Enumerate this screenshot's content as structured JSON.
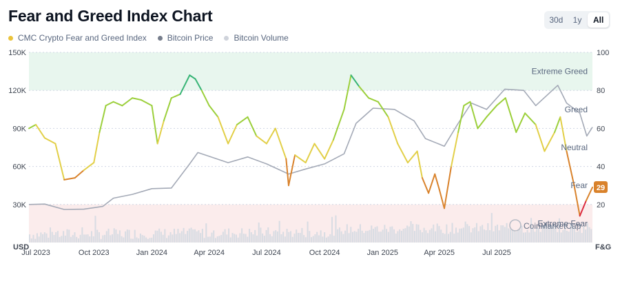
{
  "page": {
    "title": "Fear and Greed Index Chart",
    "range_buttons": [
      {
        "label": "30d",
        "active": false
      },
      {
        "label": "1y",
        "active": false
      },
      {
        "label": "All",
        "active": true
      }
    ]
  },
  "legend": [
    {
      "label": "CMC Crypto Fear and Greed Index",
      "color": "#eac33b"
    },
    {
      "label": "Bitcoin Price",
      "color": "#777e8c"
    },
    {
      "label": "Bitcoin Volume",
      "color": "#cfd3db"
    }
  ],
  "watermark": "CoinMarketCap",
  "badge": "29",
  "chart_data": {
    "type": "line",
    "left_axis": {
      "unit": "USD",
      "ticks": [
        "30K",
        "60K",
        "90K",
        "120K",
        "150K"
      ],
      "values": [
        30000,
        60000,
        90000,
        120000,
        150000
      ],
      "range": [
        0,
        150000
      ]
    },
    "right_axis": {
      "unit": "F&G",
      "ticks": [
        "20",
        "40",
        "60",
        "80",
        "100"
      ],
      "values": [
        20,
        40,
        60,
        80,
        100
      ],
      "range": [
        0,
        100
      ]
    },
    "x_ticks": [
      "Jul 2023",
      "Oct 2023",
      "Jan 2024",
      "Apr 2024",
      "Jul 2024",
      "Oct 2024",
      "Jan 2025",
      "Apr 2025",
      "Jul 2025"
    ],
    "x_tick_dates": [
      "2023-07-01",
      "2023-10-01",
      "2024-01-01",
      "2024-04-01",
      "2024-07-01",
      "2024-10-01",
      "2025-01-01",
      "2025-04-01",
      "2025-07-01"
    ],
    "zones": [
      {
        "label": "Extreme Greed",
        "from": 80,
        "to": 100,
        "fill": "#e8f6ee"
      },
      {
        "label": "Greed",
        "from": 60,
        "to": 80
      },
      {
        "label": "Neutral",
        "from": 40,
        "to": 60
      },
      {
        "label": "Fear",
        "from": 20,
        "to": 40
      },
      {
        "label": "Extreme Fear",
        "from": 0,
        "to": 20,
        "fill": "#fbecec"
      }
    ],
    "level_colors": {
      "extreme_fear": "#dc2a3f",
      "fear": "#d9822b",
      "neutral": "#e2cf47",
      "greed": "#9bcf3a",
      "extreme_greed": "#37b475"
    },
    "series": [
      {
        "name": "CMC Crypto Fear and Greed Index",
        "axis": "right",
        "x": [
          "2023-06-20",
          "2023-07-01",
          "2023-07-15",
          "2023-08-01",
          "2023-08-15",
          "2023-09-01",
          "2023-09-15",
          "2023-10-01",
          "2023-10-10",
          "2023-10-20",
          "2023-11-01",
          "2023-11-15",
          "2023-12-01",
          "2023-12-15",
          "2024-01-01",
          "2024-01-10",
          "2024-01-20",
          "2024-02-01",
          "2024-02-15",
          "2024-03-01",
          "2024-03-10",
          "2024-03-20",
          "2024-04-01",
          "2024-04-15",
          "2024-05-01",
          "2024-05-15",
          "2024-06-01",
          "2024-06-15",
          "2024-07-01",
          "2024-07-15",
          "2024-08-01",
          "2024-08-05",
          "2024-08-15",
          "2024-09-01",
          "2024-09-15",
          "2024-10-01",
          "2024-10-15",
          "2024-11-01",
          "2024-11-12",
          "2024-11-25",
          "2024-12-10",
          "2024-12-25",
          "2025-01-10",
          "2025-01-25",
          "2025-02-10",
          "2025-02-25",
          "2025-03-05",
          "2025-03-15",
          "2025-03-25",
          "2025-04-01",
          "2025-04-09",
          "2025-04-20",
          "2025-05-01",
          "2025-05-10",
          "2025-05-20",
          "2025-06-01",
          "2025-06-15",
          "2025-07-01",
          "2025-07-15",
          "2025-08-01",
          "2025-08-15",
          "2025-09-01",
          "2025-09-15",
          "2025-10-01",
          "2025-10-10",
          "2025-10-20",
          "2025-11-01",
          "2025-11-10",
          "2025-11-20",
          "2025-11-30"
        ],
        "values": [
          60,
          62,
          55,
          52,
          33,
          34,
          38,
          42,
          58,
          72,
          74,
          72,
          76,
          75,
          72,
          52,
          64,
          76,
          78,
          88,
          86,
          80,
          72,
          66,
          52,
          62,
          66,
          56,
          52,
          60,
          44,
          30,
          46,
          42,
          52,
          44,
          54,
          70,
          88,
          82,
          76,
          74,
          66,
          52,
          42,
          48,
          34,
          26,
          36,
          28,
          18,
          40,
          58,
          72,
          74,
          60,
          66,
          72,
          76,
          58,
          68,
          62,
          48,
          58,
          66,
          48,
          30,
          14,
          22,
          29
        ]
      },
      {
        "name": "Bitcoin Price",
        "axis": "left",
        "x": [
          "2023-06-20",
          "2023-07-15",
          "2023-08-15",
          "2023-09-15",
          "2023-10-15",
          "2023-11-01",
          "2023-12-01",
          "2024-01-01",
          "2024-02-01",
          "2024-03-01",
          "2024-03-14",
          "2024-04-01",
          "2024-05-01",
          "2024-06-01",
          "2024-07-01",
          "2024-08-05",
          "2024-09-01",
          "2024-10-01",
          "2024-11-01",
          "2024-11-20",
          "2024-12-17",
          "2025-01-20",
          "2025-02-20",
          "2025-03-10",
          "2025-04-09",
          "2025-05-01",
          "2025-05-22",
          "2025-06-15",
          "2025-07-14",
          "2025-08-13",
          "2025-09-01",
          "2025-10-06",
          "2025-10-20",
          "2025-11-10",
          "2025-11-21",
          "2025-11-30"
        ],
        "values": [
          30000,
          30300,
          26100,
          26300,
          28500,
          35000,
          38000,
          42500,
          43000,
          62000,
          71000,
          68000,
          63000,
          67500,
          62000,
          54000,
          58000,
          62000,
          70000,
          94000,
          106000,
          105000,
          96000,
          82000,
          76000,
          94000,
          110000,
          105000,
          121000,
          120000,
          108000,
          124000,
          110000,
          102000,
          84000,
          91000
        ]
      },
      {
        "name": "Bitcoin Volume",
        "axis": "bars",
        "note": "daily volume bars along the bottom of the plot",
        "count": 300
      }
    ]
  }
}
